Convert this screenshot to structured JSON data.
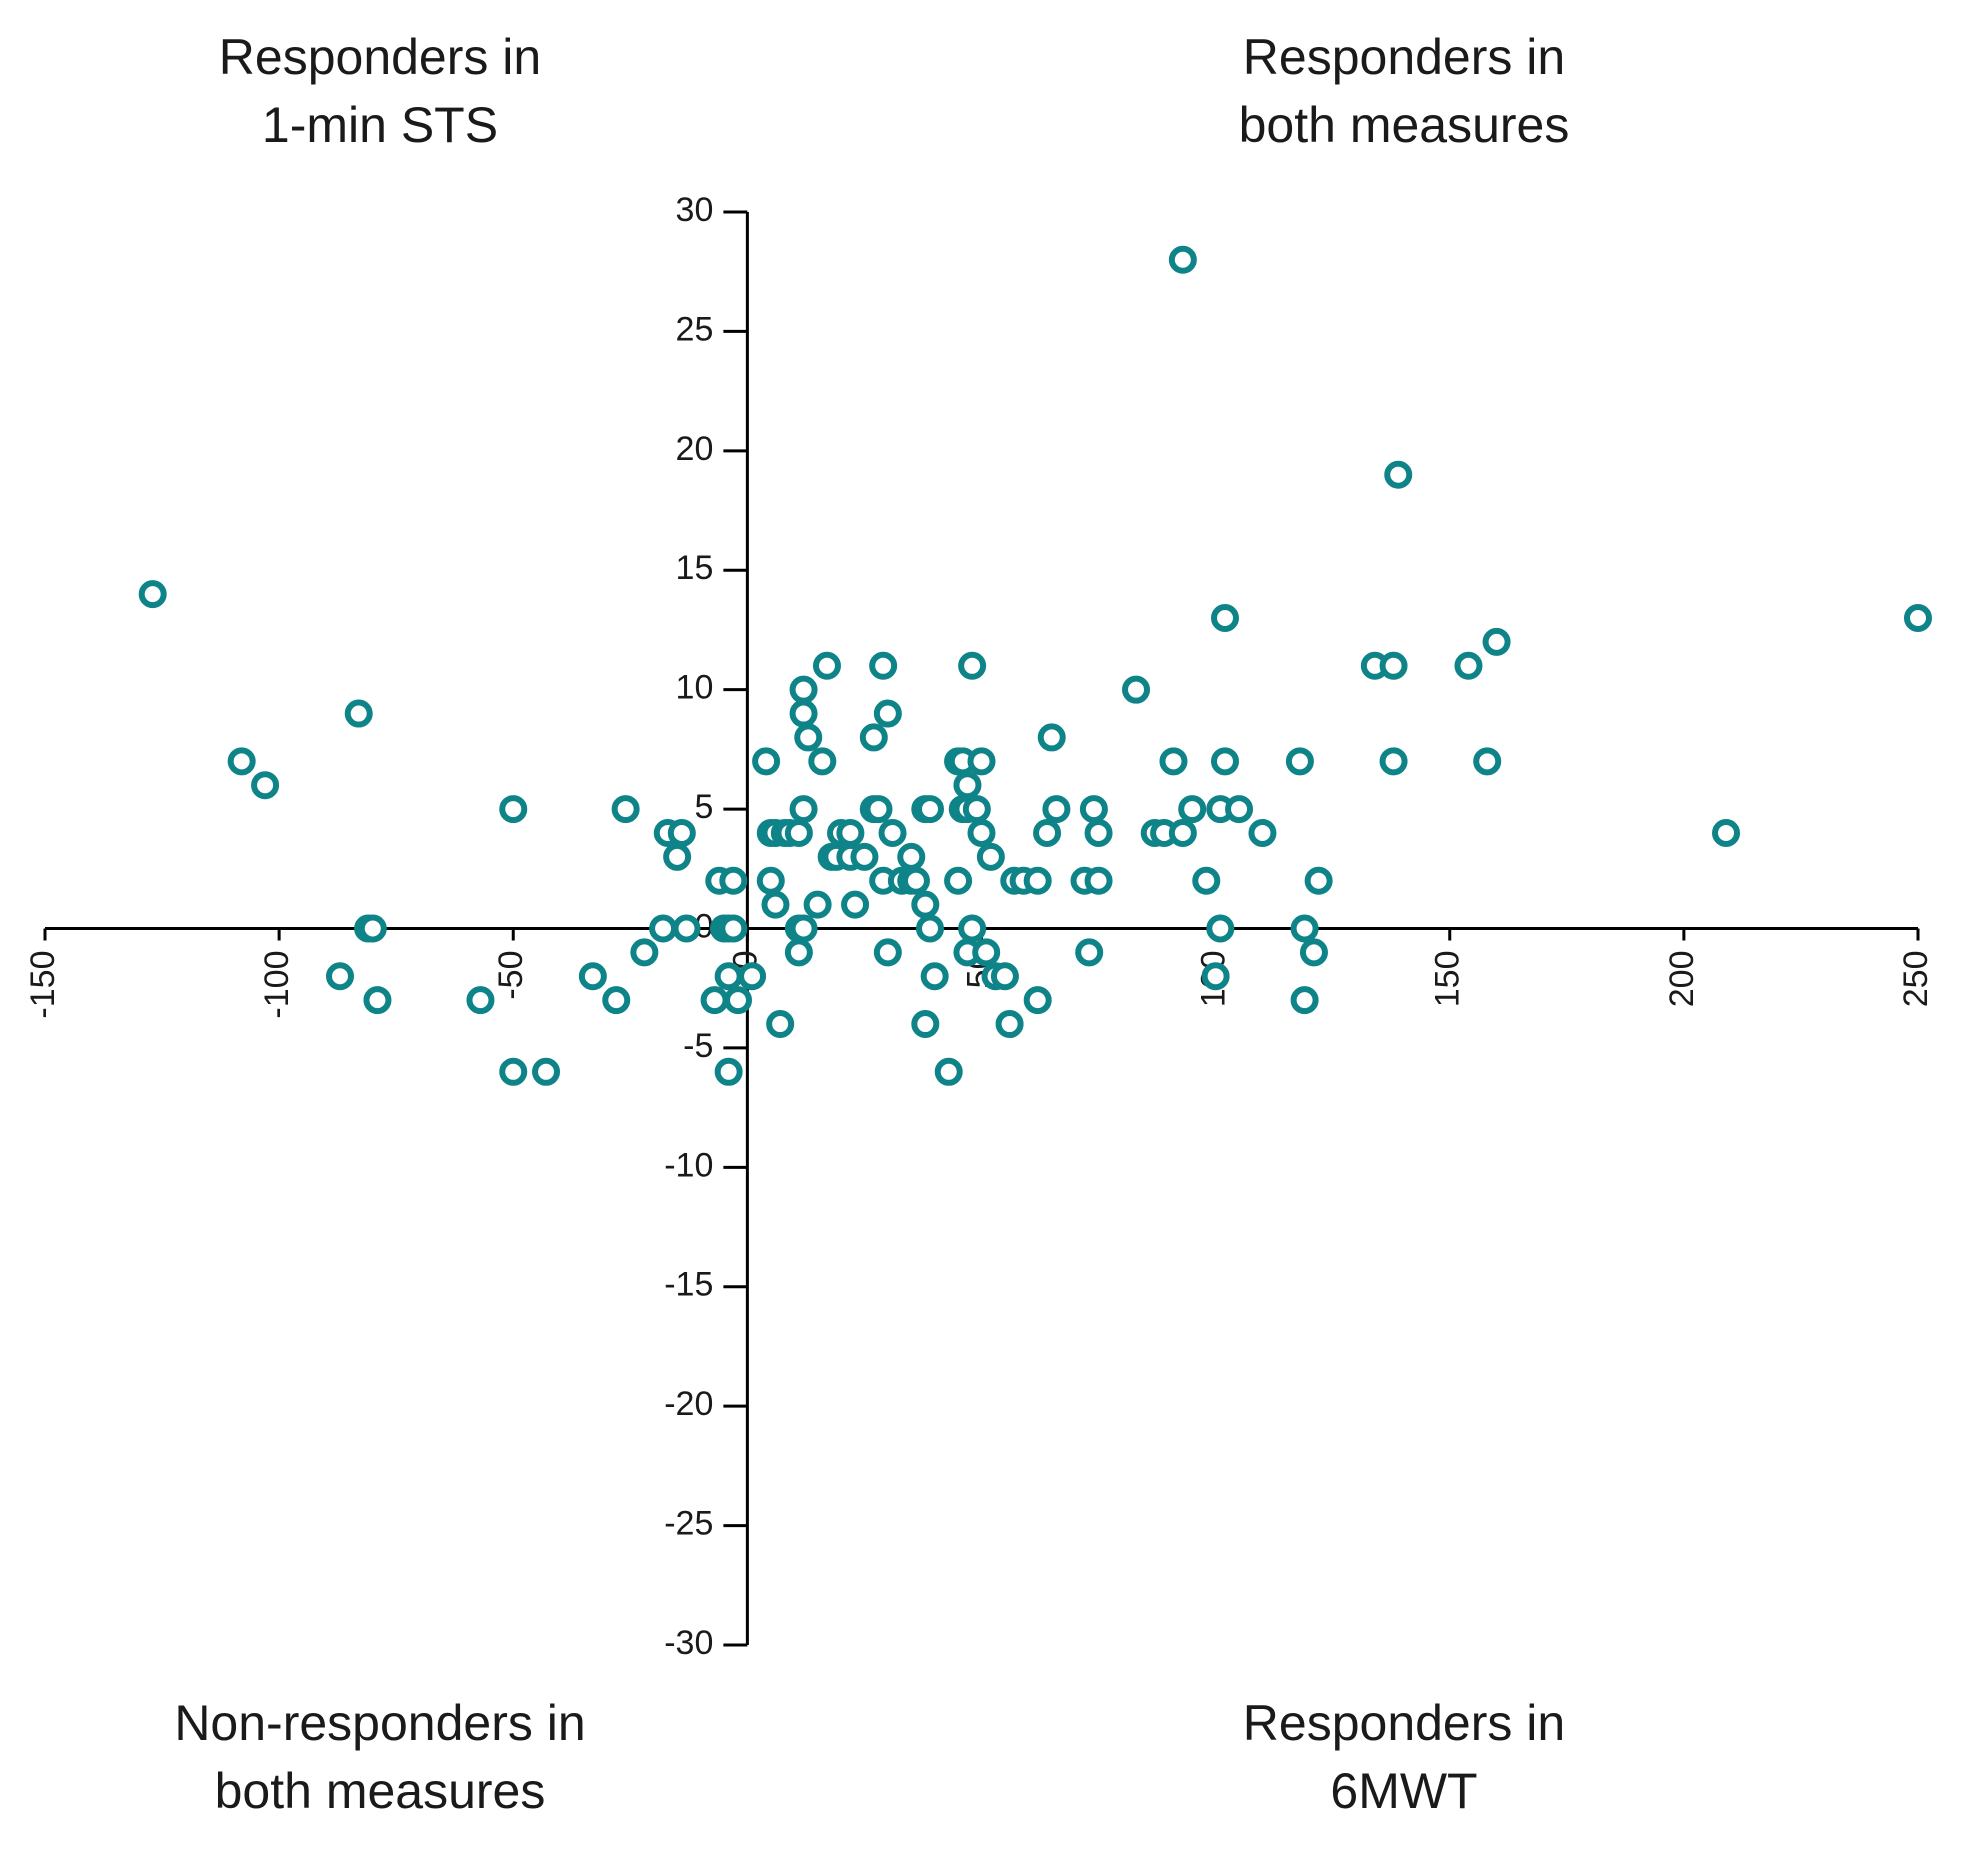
{
  "chart_data": {
    "type": "scatter",
    "title": "",
    "xlabel": "",
    "ylabel": "",
    "xlim": [
      -150,
      250
    ],
    "ylim": [
      -30,
      30
    ],
    "x_ticks": [
      -150,
      -100,
      -50,
      0,
      50,
      100,
      150,
      200,
      250
    ],
    "x_tick_labels": [
      "-150",
      "-100",
      "-50",
      "0",
      "50",
      "100",
      "150",
      "200",
      "250"
    ],
    "y_ticks": [
      30,
      25,
      20,
      15,
      10,
      5,
      0,
      -5,
      -10,
      -15,
      -20,
      -25,
      -30
    ],
    "y_tick_labels": [
      "30",
      "25",
      "20",
      "15",
      "10",
      "5",
      "0",
      "-5",
      "-10",
      "-15",
      "-20",
      "-25",
      "-30"
    ],
    "marker_color": "#0e8488",
    "quadrant_labels": {
      "top_left": [
        "Responders in",
        "1-min STS"
      ],
      "top_right": [
        "Responders in",
        "both measures"
      ],
      "bottom_left": [
        "Non-responders in",
        "both measures"
      ],
      "bottom_right": [
        "Responders in",
        "6MWT"
      ]
    },
    "points": [
      [
        -127,
        14
      ],
      [
        -108,
        7
      ],
      [
        -103,
        6
      ],
      [
        -83,
        9
      ],
      [
        -81,
        0
      ],
      [
        -80,
        0
      ],
      [
        -79,
        -3
      ],
      [
        -87,
        -2
      ],
      [
        -50,
        5
      ],
      [
        -57,
        -3
      ],
      [
        -50,
        -6
      ],
      [
        -43,
        -6
      ],
      [
        -33,
        -2
      ],
      [
        -28,
        -3
      ],
      [
        -26,
        5
      ],
      [
        -22,
        -1
      ],
      [
        -18,
        0
      ],
      [
        -17,
        4
      ],
      [
        -15,
        3
      ],
      [
        -14,
        4
      ],
      [
        -13,
        0
      ],
      [
        -6,
        2
      ],
      [
        -5,
        0
      ],
      [
        -4,
        -2
      ],
      [
        -3,
        2
      ],
      [
        -7,
        -3
      ],
      [
        -4,
        -6
      ],
      [
        -2,
        -3
      ],
      [
        1,
        -2
      ],
      [
        -4,
        0
      ],
      [
        -3,
        0
      ],
      [
        5,
        2
      ],
      [
        6,
        1
      ],
      [
        7,
        -4
      ],
      [
        4,
        7
      ],
      [
        5,
        4
      ],
      [
        6,
        4
      ],
      [
        8,
        4
      ],
      [
        9,
        4
      ],
      [
        11,
        4
      ],
      [
        11,
        0
      ],
      [
        12,
        5
      ],
      [
        12,
        0
      ],
      [
        11,
        -1
      ],
      [
        12,
        9
      ],
      [
        12,
        10
      ],
      [
        13,
        8
      ],
      [
        15,
        1
      ],
      [
        16,
        7
      ],
      [
        17,
        11
      ],
      [
        18,
        3
      ],
      [
        19,
        3
      ],
      [
        20,
        4
      ],
      [
        22,
        4
      ],
      [
        23,
        1
      ],
      [
        22,
        3
      ],
      [
        25,
        3
      ],
      [
        27,
        8
      ],
      [
        27,
        5
      ],
      [
        28,
        5
      ],
      [
        29,
        2
      ],
      [
        29,
        11
      ],
      [
        30,
        9
      ],
      [
        30,
        -1
      ],
      [
        31,
        4
      ],
      [
        33,
        2
      ],
      [
        35,
        2
      ],
      [
        35,
        3
      ],
      [
        36,
        2
      ],
      [
        38,
        5
      ],
      [
        38,
        1
      ],
      [
        39,
        5
      ],
      [
        38,
        -4
      ],
      [
        40,
        -2
      ],
      [
        39,
        0
      ],
      [
        43,
        -6
      ],
      [
        45,
        2
      ],
      [
        45,
        7
      ],
      [
        46,
        7
      ],
      [
        47,
        6
      ],
      [
        46,
        5
      ],
      [
        47,
        5
      ],
      [
        48,
        11
      ],
      [
        48,
        0
      ],
      [
        49,
        5
      ],
      [
        47,
        -1
      ],
      [
        50,
        7
      ],
      [
        50,
        4
      ],
      [
        51,
        -1
      ],
      [
        52,
        3
      ],
      [
        53,
        -2
      ],
      [
        55,
        -2
      ],
      [
        56,
        -4
      ],
      [
        57,
        2
      ],
      [
        59,
        2
      ],
      [
        62,
        2
      ],
      [
        62,
        -3
      ],
      [
        64,
        4
      ],
      [
        65,
        8
      ],
      [
        66,
        5
      ],
      [
        72,
        2
      ],
      [
        73,
        -1
      ],
      [
        74,
        5
      ],
      [
        75,
        4
      ],
      [
        75,
        2
      ],
      [
        83,
        10
      ],
      [
        87,
        4
      ],
      [
        89,
        4
      ],
      [
        91,
        7
      ],
      [
        93,
        4
      ],
      [
        95,
        5
      ],
      [
        93,
        28
      ],
      [
        98,
        2
      ],
      [
        100,
        -2
      ],
      [
        101,
        0
      ],
      [
        102,
        13
      ],
      [
        101,
        5
      ],
      [
        102,
        7
      ],
      [
        105,
        5
      ],
      [
        110,
        4
      ],
      [
        118,
        7
      ],
      [
        119,
        0
      ],
      [
        119,
        -3
      ],
      [
        121,
        -1
      ],
      [
        122,
        2
      ],
      [
        134,
        11
      ],
      [
        138,
        11
      ],
      [
        138,
        7
      ],
      [
        139,
        19
      ],
      [
        154,
        11
      ],
      [
        158,
        7
      ],
      [
        160,
        12
      ],
      [
        209,
        4
      ],
      [
        250,
        13
      ]
    ]
  }
}
